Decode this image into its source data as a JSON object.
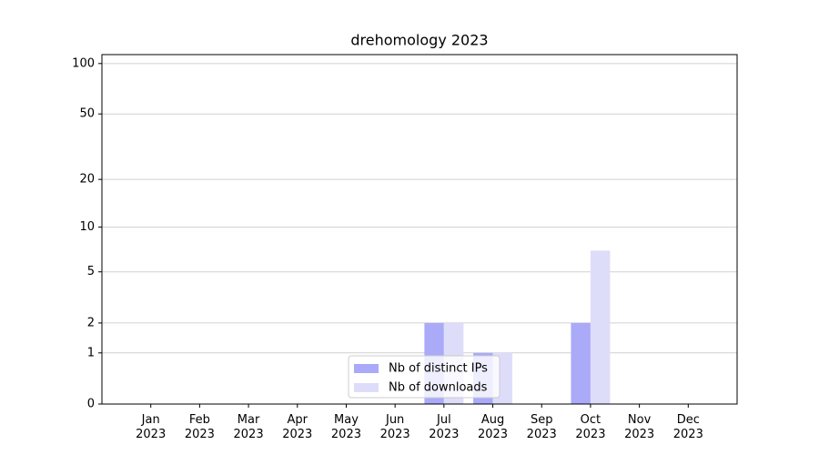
{
  "chart_data": {
    "type": "bar",
    "title": "drehomology 2023",
    "categories": [
      "Jan 2023",
      "Feb 2023",
      "Mar 2023",
      "Apr 2023",
      "May 2023",
      "Jun 2023",
      "Jul 2023",
      "Aug 2023",
      "Sep 2023",
      "Oct 2023",
      "Nov 2023",
      "Dec 2023"
    ],
    "series": [
      {
        "name": "Nb of distinct IPs",
        "color": "#aaaaf9",
        "values": [
          0,
          0,
          0,
          0,
          0,
          0,
          2,
          1,
          0,
          2,
          0,
          0
        ]
      },
      {
        "name": "Nb of downloads",
        "color": "#ddddfa",
        "values": [
          0,
          0,
          0,
          0,
          0,
          0,
          2,
          1,
          0,
          7,
          0,
          0
        ]
      }
    ],
    "yscale": "log1p",
    "ylim": [
      0,
      113
    ],
    "yticks": [
      0,
      1,
      2,
      5,
      10,
      20,
      50,
      100
    ],
    "grid": true,
    "legend": "lower center"
  }
}
